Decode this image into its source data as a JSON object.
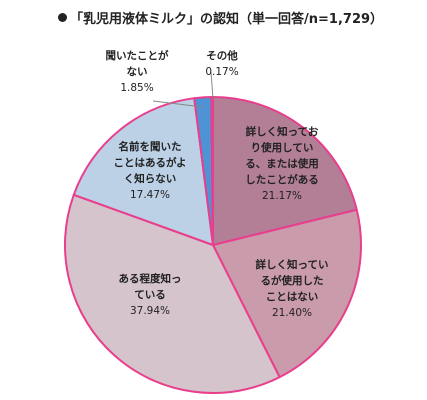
{
  "chart_data": {
    "type": "pie",
    "title": "「乳児用液体ミルク」の認知",
    "subtitle": "（単一回答/n=1,729）",
    "slices": [
      {
        "label": [
          "詳しく知ってお",
          "り使用してい",
          "る、または使用",
          "したことがある"
        ],
        "value": 21.17,
        "display": "21.17%",
        "color": "#b27f97"
      },
      {
        "label": [
          "詳しく知ってい",
          "るが使用した",
          "ことはない"
        ],
        "value": 21.4,
        "display": "21.40%",
        "color": "#c99bab"
      },
      {
        "label": [
          "ある程度知っ",
          "ている"
        ],
        "value": 37.94,
        "display": "37.94%",
        "color": "#d6c4cc"
      },
      {
        "label": [
          "名前を聞いた",
          "ことはあるがよ",
          "く知らない"
        ],
        "value": 17.47,
        "display": "17.47%",
        "color": "#bcd0e6"
      },
      {
        "label": [
          "聞いたことが",
          "ない"
        ],
        "value": 1.85,
        "display": "1.85%",
        "color": "#4e93d6"
      },
      {
        "label": [
          "その他"
        ],
        "value": 0.17,
        "display": "0.17%",
        "color": "#c4c9cf"
      }
    ],
    "border_color": "#e83e8c"
  }
}
